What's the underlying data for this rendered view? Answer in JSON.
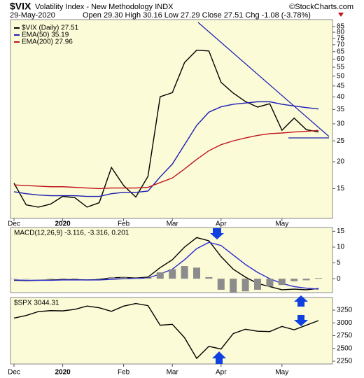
{
  "chart_data": [
    {
      "type": "line",
      "title": "$VIX",
      "subtitle": "Volatility Index - New Methodology INDX",
      "source": "©StockCharts.com",
      "date": "29-May-2020",
      "quote": "Open 29.30 High 30.16 Low 27.29 Close 27.51 Chg -1.08 (-3.78%)",
      "categories": [
        "Dec",
        null,
        null,
        null,
        "2020",
        null,
        null,
        null,
        null,
        "Feb",
        null,
        null,
        null,
        "Mar",
        null,
        null,
        null,
        "Apr",
        null,
        null,
        null,
        null,
        "May",
        null,
        null,
        null
      ],
      "series": [
        {
          "name": "$VIX (Daily) 27.51",
          "color": "#000000",
          "values": [
            15.9,
            12.6,
            12.3,
            12.7,
            13.8,
            13.6,
            12.3,
            12.9,
            18.8,
            15.5,
            13.7,
            17.1,
            40.1,
            41.9,
            57.8,
            66.0,
            65.5,
            46.8,
            41.7,
            38.1,
            35.9,
            37.2,
            28.0,
            31.9,
            28.2,
            27.5
          ]
        },
        {
          "name": "EMA(50) 35.19",
          "color": "#1c1cb4",
          "values": [
            14.5,
            14.2,
            14.0,
            13.9,
            13.9,
            13.9,
            13.8,
            13.8,
            14.2,
            14.4,
            14.4,
            14.6,
            17.0,
            19.5,
            24.0,
            29.5,
            34.0,
            36.0,
            37.0,
            37.5,
            38.0,
            38.0,
            37.0,
            36.3,
            35.7,
            35.19
          ]
        },
        {
          "name": "EMA(200) 27.96",
          "color": "#c0141e",
          "values": [
            15.6,
            15.5,
            15.4,
            15.3,
            15.3,
            15.2,
            15.1,
            15.0,
            15.1,
            15.1,
            15.1,
            15.2,
            16.0,
            16.8,
            18.5,
            20.5,
            22.5,
            24.0,
            25.0,
            25.8,
            26.5,
            27.0,
            27.2,
            27.5,
            27.7,
            27.96
          ]
        }
      ],
      "ylog": true,
      "ylim": [
        10.9,
        91.6
      ],
      "yticks": [
        15,
        20,
        25,
        30,
        35,
        40,
        45,
        50,
        55,
        60,
        65,
        70,
        75,
        80,
        85
      ]
    },
    {
      "type": "line",
      "title": "MACD(12,26,9) -3.116, -3.316, 0.201",
      "series": [
        {
          "color": "#000000",
          "values": [
            -0.5,
            -0.6,
            -0.5,
            -0.4,
            -0.3,
            -0.3,
            -0.4,
            -0.3,
            0.3,
            0.4,
            0.2,
            0.5,
            3.5,
            6.0,
            10.0,
            13.0,
            12.0,
            7.0,
            3.0,
            0.5,
            -1.5,
            -2.5,
            -3.5,
            -3.3,
            -3.5,
            -3.116
          ]
        },
        {
          "color": "#2a2ad0",
          "values": [
            -0.4,
            -0.5,
            -0.5,
            -0.5,
            -0.4,
            -0.4,
            -0.4,
            -0.4,
            -0.2,
            0.0,
            0.1,
            0.2,
            1.5,
            3.0,
            6.0,
            9.5,
            11.5,
            10.5,
            7.5,
            4.5,
            2.0,
            0.0,
            -1.5,
            -2.5,
            -3.0,
            -3.316
          ]
        },
        {
          "color": "#8c8c8c",
          "style": "histogram",
          "values": [
            -0.1,
            -0.1,
            0.0,
            0.1,
            0.1,
            0.1,
            0.0,
            0.1,
            0.5,
            0.4,
            0.1,
            0.3,
            2.0,
            3.0,
            4.0,
            3.5,
            0.5,
            -3.5,
            -4.5,
            -4.0,
            -3.5,
            -2.5,
            -2.0,
            -0.8,
            -0.5,
            0.201
          ]
        }
      ],
      "ylim": [
        -4.4,
        16.2
      ],
      "yticks": [
        0,
        5,
        10,
        15
      ]
    },
    {
      "type": "line",
      "title": "$SPX 3044.31",
      "categories": [
        "Dec",
        null,
        null,
        null,
        "2020",
        null,
        null,
        null,
        null,
        "Feb",
        null,
        null,
        null,
        "Mar",
        null,
        null,
        null,
        "Apr",
        null,
        null,
        null,
        null,
        "May",
        null,
        null,
        null
      ],
      "series": [
        {
          "color": "#000000",
          "values": [
            3093,
            3145,
            3221,
            3240,
            3235,
            3265,
            3330,
            3295,
            3226,
            3328,
            3380,
            3338,
            2954,
            2972,
            2711,
            2305,
            2541,
            2489,
            2790,
            2875,
            2837,
            2830,
            2930,
            2864,
            2955,
            3044.31
          ]
        }
      ],
      "ylim": [
        2195,
        3497
      ],
      "yticks": [
        2250,
        2500,
        2750,
        3000,
        3250
      ]
    }
  ]
}
